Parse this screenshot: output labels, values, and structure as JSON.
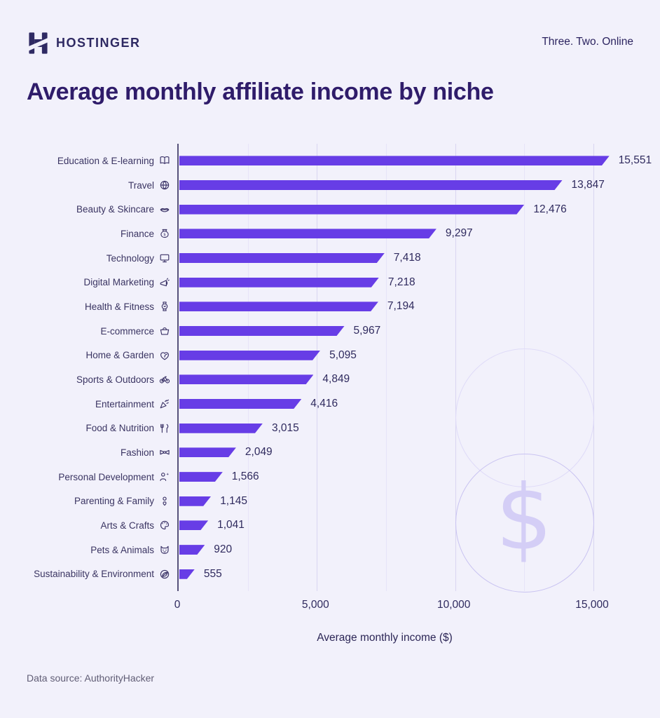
{
  "header": {
    "brand": "HOSTINGER",
    "tagline": "Three. Two. Online",
    "brand_color": "#2f2a63"
  },
  "title": "Average monthly affiliate income by niche",
  "source": "Data source: AuthorityHacker",
  "decor": {
    "dollar_sign": "$"
  },
  "chart_data": {
    "type": "bar",
    "orientation": "horizontal",
    "title": "Average monthly affiliate income by niche",
    "xlabel": "Average monthly income ($)",
    "xlim": [
      0,
      15000
    ],
    "gridline_step": 2500,
    "bar_color": "#673de6",
    "legend": "none",
    "xticks": [
      {
        "value": 0,
        "label": "0"
      },
      {
        "value": 5000,
        "label": "5,000"
      },
      {
        "value": 10000,
        "label": "10,000"
      },
      {
        "value": 15000,
        "label": "15,000"
      }
    ],
    "categories": [
      {
        "label": "Education & E-learning",
        "value": 15551,
        "value_label": "15,551",
        "icon": "book-icon"
      },
      {
        "label": "Travel",
        "value": 13847,
        "value_label": "13,847",
        "icon": "globe-icon"
      },
      {
        "label": "Beauty & Skincare",
        "value": 12476,
        "value_label": "12,476",
        "icon": "lips-icon"
      },
      {
        "label": "Finance",
        "value": 9297,
        "value_label": "9,297",
        "icon": "money-bag-icon"
      },
      {
        "label": "Technology",
        "value": 7418,
        "value_label": "7,418",
        "icon": "monitor-icon"
      },
      {
        "label": "Digital Marketing",
        "value": 7218,
        "value_label": "7,218",
        "icon": "megaphone-icon"
      },
      {
        "label": "Health & Fitness",
        "value": 7194,
        "value_label": "7,194",
        "icon": "watch-icon"
      },
      {
        "label": "E-commerce",
        "value": 5967,
        "value_label": "5,967",
        "icon": "basket-icon"
      },
      {
        "label": "Home & Garden",
        "value": 5095,
        "value_label": "5,095",
        "icon": "home-leaf-icon"
      },
      {
        "label": "Sports & Outdoors",
        "value": 4849,
        "value_label": "4,849",
        "icon": "bicycle-icon"
      },
      {
        "label": "Entertainment",
        "value": 4416,
        "value_label": "4,416",
        "icon": "party-popper-icon"
      },
      {
        "label": "Food & Nutrition",
        "value": 3015,
        "value_label": "3,015",
        "icon": "utensils-icon"
      },
      {
        "label": "Fashion",
        "value": 2049,
        "value_label": "2,049",
        "icon": "bowtie-icon"
      },
      {
        "label": "Personal Development",
        "value": 1566,
        "value_label": "1,566",
        "icon": "person-sparkle-icon"
      },
      {
        "label": "Parenting & Family",
        "value": 1145,
        "value_label": "1,145",
        "icon": "person-heart-icon"
      },
      {
        "label": "Arts & Crafts",
        "value": 1041,
        "value_label": "1,041",
        "icon": "palette-icon"
      },
      {
        "label": "Pets & Animals",
        "value": 920,
        "value_label": "920",
        "icon": "cat-icon"
      },
      {
        "label": "Sustainability & Environment",
        "value": 555,
        "value_label": "555",
        "icon": "globe-leaf-icon"
      }
    ]
  }
}
